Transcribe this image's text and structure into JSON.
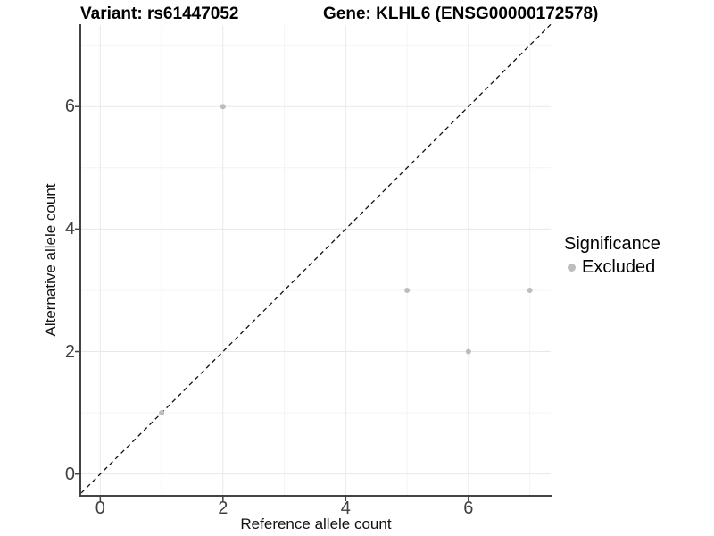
{
  "chart_data": {
    "type": "scatter",
    "titles": {
      "left": "Variant: rs61447052",
      "right": "Gene: KLHL6 (ENSG00000172578)"
    },
    "xlabel": "Reference allele count",
    "ylabel": "Alternative allele count",
    "x_ticks": [
      0,
      2,
      4,
      6
    ],
    "y_ticks": [
      0,
      2,
      4,
      6
    ],
    "x_minor_gridlines": [
      1,
      3,
      5,
      7
    ],
    "y_minor_gridlines": [
      1,
      3,
      5,
      7
    ],
    "xlim": [
      -0.31,
      7.34
    ],
    "ylim": [
      -0.34,
      7.33
    ],
    "grid": {
      "major": true,
      "minor": true
    },
    "identity_line": {
      "equation": "y = x",
      "style": "dashed",
      "color": "#111111"
    },
    "series": [
      {
        "name": "Excluded",
        "color": "#bdbdbd",
        "points": [
          [
            1,
            1
          ],
          [
            2,
            6
          ],
          [
            5,
            3
          ],
          [
            6,
            2
          ],
          [
            7,
            3
          ]
        ]
      }
    ],
    "legend": {
      "title": "Significance",
      "position": "right",
      "items": [
        {
          "label": "Excluded",
          "color": "#bdbdbd"
        }
      ]
    },
    "colors": {
      "background": "#ffffff",
      "axis_line": "#434343",
      "tick_mark": "#434343",
      "tick_label": "#404040",
      "grid_major": "#e8e8e8",
      "grid_minor": "#f4f4f4",
      "point": "#bdbdbd"
    }
  }
}
